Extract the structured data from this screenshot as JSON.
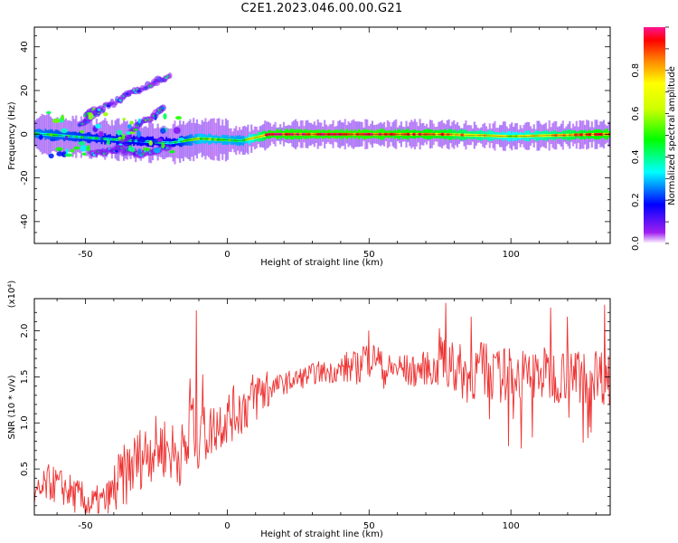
{
  "title": "C2E1.2023.046.00.00.G21",
  "chart_data": [
    {
      "type": "heatmap",
      "xlabel": "Height of straight line (km)",
      "ylabel": "Frequency (Hz)",
      "xlim": [
        -68,
        135
      ],
      "ylim": [
        -50,
        49
      ],
      "xticks": [
        -50,
        0,
        50,
        100
      ],
      "yticks": [
        -40,
        -20,
        0,
        20,
        40
      ],
      "colorbar": {
        "label": "Normalized spectral amplitude",
        "range": [
          0.0,
          1.0
        ],
        "ticks": [
          "0.0",
          "0.2",
          "0.4",
          "0.6",
          "0.8"
        ]
      },
      "dominant_line": {
        "frequency_hz": 0,
        "description_points": [
          {
            "x": -65,
            "y": 0,
            "amp": 0.45
          },
          {
            "x": -45,
            "y": -2,
            "amp": 0.35
          },
          {
            "x": -20,
            "y": -4,
            "amp": 0.3
          },
          {
            "x": -10,
            "y": -2,
            "amp": 0.55
          },
          {
            "x": 5,
            "y": -3,
            "amp": 0.5
          },
          {
            "x": 15,
            "y": 0,
            "amp": 0.9
          },
          {
            "x": 50,
            "y": 0,
            "amp": 0.92
          },
          {
            "x": 75,
            "y": 0,
            "amp": 0.85
          },
          {
            "x": 100,
            "y": -1,
            "amp": 0.6
          },
          {
            "x": 133,
            "y": 0,
            "amp": 0.9
          }
        ]
      },
      "branches": [
        {
          "points": [
            [
              -52,
              4
            ],
            [
              -45,
              11
            ],
            [
              -35,
              18
            ],
            [
              -25,
              24
            ],
            [
              -20,
              27
            ]
          ],
          "amp": 0.35
        },
        {
          "points": [
            [
              -50,
              9
            ],
            [
              -44,
              12
            ]
          ],
          "amp": 0.4
        },
        {
          "points": [
            [
              -40,
              -8
            ],
            [
              -33,
              2
            ],
            [
              -28,
              7
            ],
            [
              -22,
              12
            ]
          ],
          "amp": 0.4
        },
        {
          "points": [
            [
              -48,
              -9
            ],
            [
              -38,
              -7
            ],
            [
              -30,
              -9
            ],
            [
              -20,
              -6
            ]
          ],
          "amp": 0.35
        }
      ]
    },
    {
      "type": "line",
      "xlabel": "Height of straight line (km)",
      "ylabel": "SNR (10 * v/v)",
      "y_scale_label": "(x10⁴)",
      "xlim": [
        -68,
        135
      ],
      "ylim": [
        0.0,
        2.35
      ],
      "xticks": [
        -50,
        0,
        50,
        100
      ],
      "yticks": [
        0.5,
        1.0,
        1.5,
        2.0
      ],
      "color": "#ee3333",
      "series": [
        {
          "x": [
            -68,
            -63,
            -58,
            -53,
            -48,
            -43,
            -38,
            -33,
            -28,
            -23,
            -18,
            -13,
            -11,
            -8,
            -3,
            2,
            7,
            12,
            17,
            22,
            27,
            32,
            37,
            42,
            47,
            50,
            55,
            60,
            65,
            70,
            75,
            77,
            80,
            85,
            90,
            95,
            100,
            105,
            110,
            115,
            120,
            125,
            130,
            135
          ],
          "values": [
            0.15,
            0.35,
            0.3,
            0.2,
            0.1,
            0.15,
            0.35,
            0.55,
            0.7,
            0.75,
            0.65,
            0.7,
            2.2,
            0.85,
            1.0,
            1.1,
            1.2,
            1.35,
            1.4,
            1.45,
            1.5,
            1.55,
            1.55,
            1.6,
            1.6,
            2.0,
            1.55,
            1.6,
            1.55,
            1.6,
            1.55,
            2.3,
            1.6,
            1.5,
            1.6,
            1.5,
            1.55,
            1.5,
            1.55,
            1.5,
            1.55,
            1.5,
            1.55,
            1.45
          ]
        }
      ]
    }
  ]
}
